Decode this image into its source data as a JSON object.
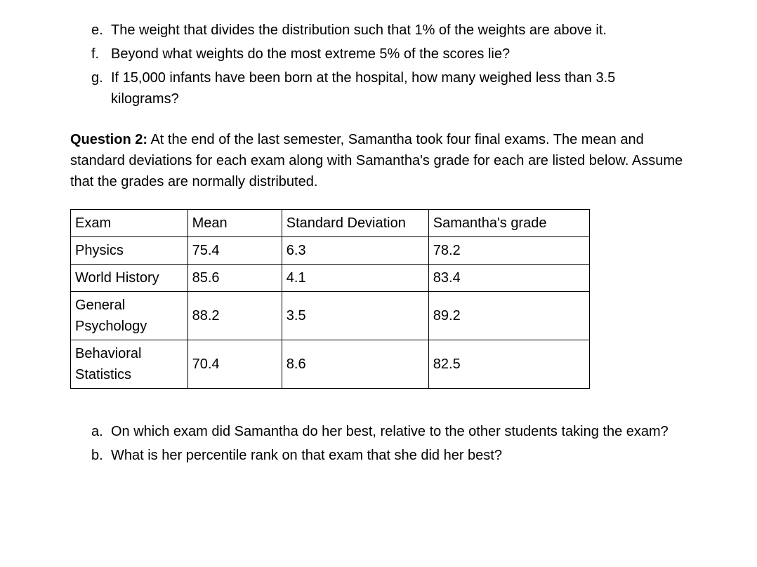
{
  "list_top": {
    "e": {
      "marker": "e.",
      "text": "The weight that divides the distribution such that 1% of the weights are above it."
    },
    "f": {
      "marker": "f.",
      "text": "Beyond what weights do the most extreme 5% of the scores lie?"
    },
    "g": {
      "marker": "g.",
      "text": "If 15,000 infants have been born at the hospital, how many weighed less than 3.5 kilograms?"
    }
  },
  "question2": {
    "label": "Question 2:",
    "text": " At the end of the last semester, Samantha took four final exams. The mean and standard deviations for each exam along with Samantha's grade for each are listed below. Assume that the grades are normally distributed."
  },
  "table": {
    "columns": [
      "Exam",
      "Mean",
      "Standard Deviation",
      "Samantha's grade"
    ],
    "rows": [
      [
        "Physics",
        "75.4",
        "6.3",
        "78.2"
      ],
      [
        "World History",
        "85.6",
        "4.1",
        "83.4"
      ],
      [
        "General Psychology",
        "88.2",
        "3.5",
        "89.2"
      ],
      [
        "Behavioral Statistics",
        "70.4",
        "8.6",
        "82.5"
      ]
    ]
  },
  "list_bottom": {
    "a": {
      "marker": "a.",
      "text": "On which exam did Samantha do her best, relative to the other students taking the exam?"
    },
    "b": {
      "marker": "b.",
      "text": "What is her percentile rank on that exam that she did her best?"
    }
  }
}
